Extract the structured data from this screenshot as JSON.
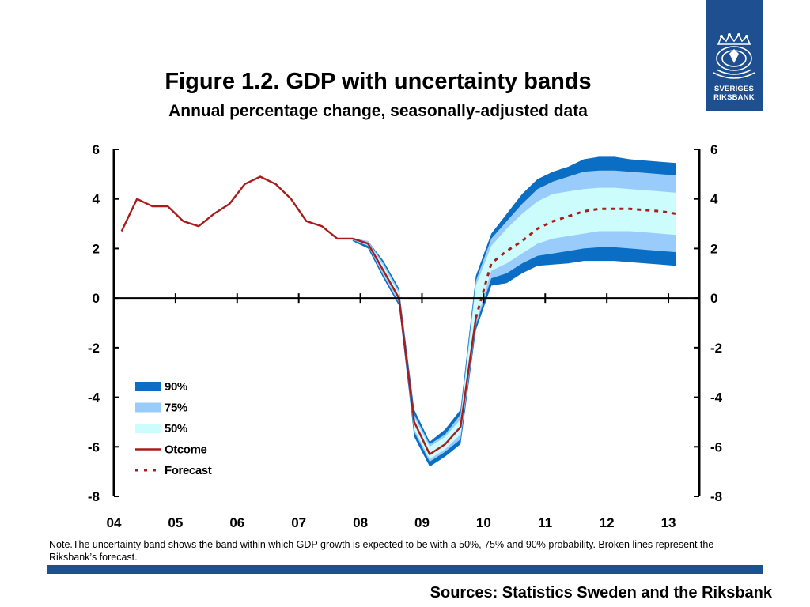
{
  "logo": {
    "line1": "SVERIGES",
    "line2": "RIKSBANK"
  },
  "title": "Figure 1.2. GDP with uncertainty bands",
  "subtitle": "Annual percentage change, seasonally-adjusted data",
  "note": "Note.The uncertainty band shows the band within which GDP growth is expected to be with a 50%, 75% and 90% probability. Broken lines represent the Riksbank’s forecast.",
  "sources": "Sources: Statistics Sweden and the Riksbank",
  "colors": {
    "band90": "#0a6fc4",
    "band75": "#99ccfa",
    "band50": "#ccfcfc",
    "outcome": "#a81c1c",
    "forecast": "#a81c1c",
    "brand": "#1d4f91"
  },
  "chart_data": {
    "type": "area",
    "title": "Figure 1.2. GDP with uncertainty bands",
    "subtitle": "Annual percentage change, seasonally-adjusted data",
    "xlabel": "",
    "ylabel": "",
    "x_tick_labels": [
      "04",
      "05",
      "06",
      "07",
      "08",
      "09",
      "10",
      "11",
      "12",
      "13"
    ],
    "xlim": [
      2004.0,
      2013.5
    ],
    "ylim": [
      -8,
      6
    ],
    "y_ticks": [
      -8,
      -6,
      -4,
      -2,
      0,
      2,
      4,
      6
    ],
    "y_tick_labels": [
      "-8",
      "-6",
      "-4",
      "-2",
      "0",
      "2",
      "4",
      "6"
    ],
    "grid": false,
    "zero_line": true,
    "legend": {
      "position": "bottom-left",
      "entries": [
        "90%",
        "75%",
        "50%",
        "Otcome",
        "Forecast"
      ]
    },
    "series": [
      {
        "name": "Otcome",
        "style": "solid",
        "x": [
          2004.125,
          2004.375,
          2004.625,
          2004.875,
          2005.125,
          2005.375,
          2005.625,
          2005.875,
          2006.125,
          2006.375,
          2006.625,
          2006.875,
          2007.125,
          2007.375,
          2007.625,
          2007.875,
          2008.125,
          2008.375,
          2008.625,
          2008.875,
          2009.125,
          2009.375,
          2009.625,
          2009.875
        ],
        "values": [
          2.7,
          4.0,
          3.7,
          3.7,
          3.1,
          2.9,
          3.4,
          3.8,
          4.6,
          4.9,
          4.6,
          4.0,
          3.1,
          2.9,
          2.4,
          2.4,
          2.2,
          1.1,
          0.0,
          -5.0,
          -6.3,
          -5.9,
          -5.2,
          -0.8
        ]
      },
      {
        "name": "Forecast",
        "style": "dashed",
        "x": [
          2009.875,
          2010.125,
          2010.375,
          2010.625,
          2010.875,
          2011.125,
          2011.375,
          2011.625,
          2011.875,
          2012.125,
          2012.375,
          2012.625,
          2012.875,
          2013.125
        ],
        "values": [
          -0.8,
          1.4,
          1.9,
          2.3,
          2.8,
          3.1,
          3.3,
          3.5,
          3.6,
          3.6,
          3.6,
          3.55,
          3.5,
          3.4
        ]
      }
    ],
    "bands": {
      "x": [
        2007.875,
        2008.125,
        2008.375,
        2008.625,
        2008.875,
        2009.125,
        2009.375,
        2009.625,
        2009.875,
        2010.125,
        2010.375,
        2010.625,
        2010.875,
        2011.125,
        2011.375,
        2011.625,
        2011.875,
        2012.125,
        2012.375,
        2012.625,
        2012.875,
        2013.125
      ],
      "90%": {
        "upper": [
          2.4,
          2.3,
          1.5,
          0.4,
          -4.5,
          -5.8,
          -5.3,
          -4.5,
          0.9,
          2.6,
          3.4,
          4.2,
          4.8,
          5.1,
          5.3,
          5.6,
          5.7,
          5.7,
          5.6,
          5.55,
          5.5,
          5.45
        ],
        "lower": [
          2.3,
          2.0,
          0.8,
          -0.3,
          -5.6,
          -6.8,
          -6.4,
          -5.9,
          -1.3,
          0.5,
          0.6,
          1.0,
          1.3,
          1.35,
          1.4,
          1.5,
          1.5,
          1.5,
          1.45,
          1.4,
          1.35,
          1.3
        ]
      },
      "75%": {
        "upper": [
          2.4,
          2.3,
          1.4,
          0.3,
          -4.7,
          -5.9,
          -5.5,
          -4.7,
          0.7,
          2.4,
          3.1,
          3.8,
          4.4,
          4.7,
          4.9,
          5.1,
          5.15,
          5.15,
          5.1,
          5.05,
          5.0,
          4.95
        ],
        "lower": [
          2.35,
          2.1,
          0.9,
          -0.2,
          -5.4,
          -6.6,
          -6.2,
          -5.7,
          -1.1,
          0.8,
          1.0,
          1.4,
          1.7,
          1.8,
          1.9,
          2.0,
          2.05,
          2.05,
          2.0,
          1.95,
          1.9,
          1.85
        ]
      },
      "50%": {
        "upper": [
          2.4,
          2.25,
          1.3,
          0.2,
          -4.8,
          -6.0,
          -5.6,
          -4.9,
          0.5,
          2.1,
          2.8,
          3.4,
          3.9,
          4.2,
          4.3,
          4.4,
          4.45,
          4.45,
          4.4,
          4.35,
          4.3,
          4.25
        ],
        "lower": [
          2.35,
          2.15,
          1.0,
          -0.1,
          -5.3,
          -6.5,
          -6.1,
          -5.5,
          -1.0,
          1.1,
          1.4,
          1.8,
          2.2,
          2.4,
          2.5,
          2.6,
          2.7,
          2.7,
          2.7,
          2.65,
          2.6,
          2.55
        ]
      }
    }
  }
}
